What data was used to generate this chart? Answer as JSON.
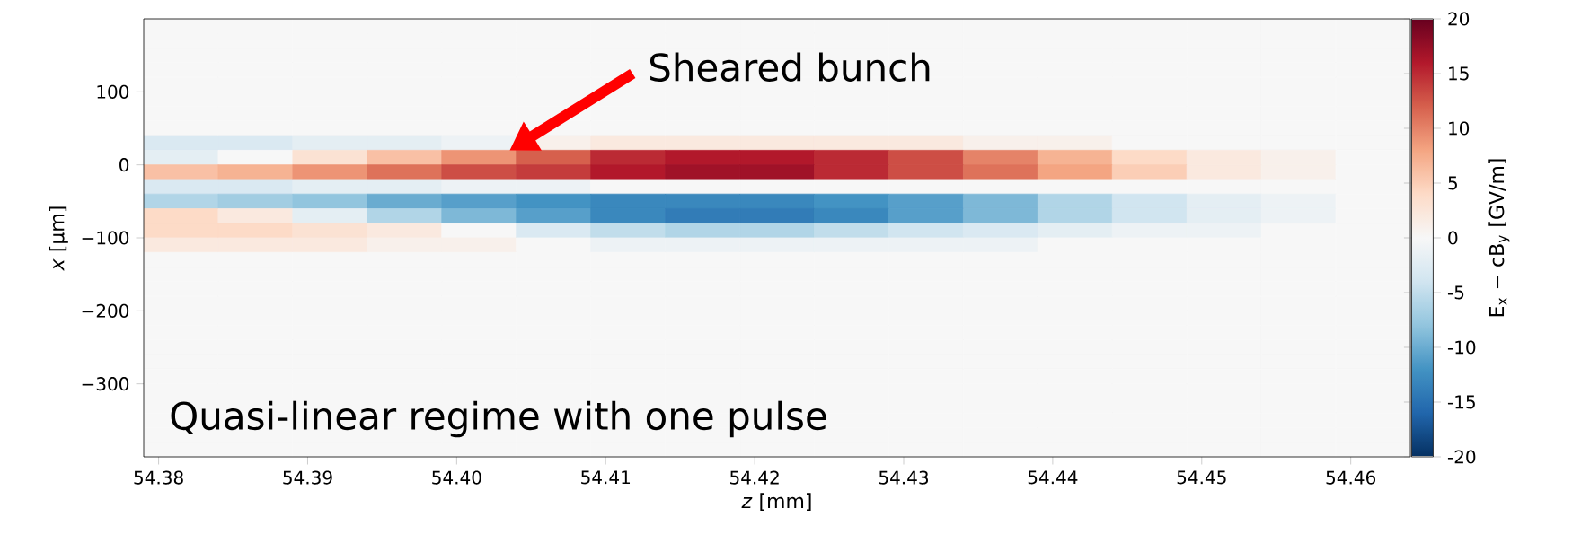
{
  "chart_data": {
    "type": "heatmap",
    "xlabel": "*z* [mm]",
    "ylabel": "*x* [µm]",
    "clabel": "E$_{x}$ − cB$_{y}$ [GV/m]",
    "xlim": [
      54.379,
      54.464
    ],
    "ylim": [
      -400,
      200
    ],
    "xticks": [
      54.38,
      54.39,
      {
        "value": 54.4,
        "label": "54.40"
      },
      54.41,
      54.42,
      54.43,
      54.44,
      54.45,
      54.46
    ],
    "yticks": [
      {
        "value": -300,
        "label": "−300"
      },
      {
        "value": -200,
        "label": "−200"
      },
      {
        "value": -100,
        "label": "−100"
      },
      0,
      100
    ],
    "clim": [
      -20,
      20
    ],
    "cticks": [
      -20,
      -15,
      -10,
      -5,
      0,
      5,
      10,
      15,
      20
    ],
    "x": [
      54.3815,
      54.3865,
      54.3915,
      54.3965,
      54.4015,
      54.4065,
      54.4115,
      54.4165,
      54.4215,
      54.4265,
      54.4315,
      54.4365,
      54.4415,
      54.4465,
      54.4515,
      54.4565,
      54.4615
    ],
    "y": [
      190,
      170,
      150,
      130,
      110,
      90,
      70,
      50,
      30,
      10,
      -10,
      -30,
      -50,
      -70,
      -90,
      -110,
      -130,
      -150,
      -170,
      -190,
      -210,
      -230,
      -250,
      -270,
      -290,
      -310,
      -330,
      -350,
      -370,
      -390
    ],
    "cells": [
      [
        0,
        0,
        0,
        0,
        0,
        0,
        0,
        0,
        0,
        0,
        0,
        0,
        0,
        0,
        0,
        0,
        0
      ],
      [
        0,
        0,
        0,
        0,
        0,
        0,
        0,
        0,
        0,
        0,
        0,
        0,
        0,
        0,
        0,
        0,
        0
      ],
      [
        0,
        0,
        0,
        0,
        0,
        0,
        0,
        0,
        0,
        0,
        0,
        0,
        0,
        0,
        0,
        0,
        0
      ],
      [
        0,
        0,
        0,
        0,
        0,
        0,
        0,
        0,
        0,
        0,
        0,
        0,
        0,
        0,
        0,
        0,
        0
      ],
      [
        0,
        0,
        0,
        0,
        0,
        0,
        0,
        0,
        0,
        0,
        0,
        0,
        0,
        0,
        0,
        0,
        0
      ],
      [
        0,
        0,
        0,
        0,
        0,
        0,
        0,
        0,
        0,
        0,
        0,
        0,
        0,
        0,
        0,
        0,
        0
      ],
      [
        0,
        0,
        0,
        0,
        0,
        0,
        0,
        0,
        0,
        0,
        0,
        0,
        0,
        0,
        0,
        0,
        0
      ],
      [
        0,
        0,
        0,
        0,
        0,
        0,
        0,
        0,
        0,
        0,
        0,
        0,
        0,
        0,
        0,
        0,
        0
      ],
      [
        -3,
        -3,
        -2,
        -2,
        -1,
        1,
        2,
        2,
        2,
        2,
        2,
        1,
        1,
        0,
        0,
        0,
        0
      ],
      [
        -2,
        0,
        3,
        6,
        9,
        12,
        15,
        16,
        16,
        15,
        13,
        10,
        7,
        4,
        2,
        1,
        0
      ],
      [
        6,
        7,
        9,
        11,
        13,
        14,
        16,
        17,
        17,
        15,
        13,
        11,
        8,
        5,
        2,
        1,
        0
      ],
      [
        -3,
        -3,
        -2,
        -2,
        -1,
        -1,
        0,
        0,
        0,
        0,
        0,
        0,
        0,
        0,
        0,
        0,
        0
      ],
      [
        -6,
        -7,
        -8,
        -10,
        -11,
        -12,
        -13,
        -13,
        -13,
        -12,
        -11,
        -9,
        -6,
        -4,
        -2,
        -1,
        0
      ],
      [
        4,
        2,
        -2,
        -6,
        -9,
        -11,
        -13,
        -14,
        -14,
        -13,
        -11,
        -9,
        -6,
        -4,
        -2,
        -1,
        0
      ],
      [
        4,
        4,
        3,
        2,
        0,
        -3,
        -5,
        -6,
        -6,
        -5,
        -4,
        -3,
        -2,
        -1,
        -1,
        0,
        0
      ],
      [
        2,
        2,
        2,
        1,
        1,
        0,
        -1,
        -1,
        -1,
        -1,
        -1,
        -1,
        0,
        0,
        0,
        0,
        0
      ],
      [
        0,
        0,
        0,
        0,
        0,
        0,
        0,
        0,
        0,
        0,
        0,
        0,
        0,
        0,
        0,
        0,
        0
      ],
      [
        0,
        0,
        0,
        0,
        0,
        0,
        0,
        0,
        0,
        0,
        0,
        0,
        0,
        0,
        0,
        0,
        0
      ],
      [
        0,
        0,
        0,
        0,
        0,
        0,
        0,
        0,
        0,
        0,
        0,
        0,
        0,
        0,
        0,
        0,
        0
      ],
      [
        0,
        0,
        0,
        0,
        0,
        0,
        0,
        0,
        0,
        0,
        0,
        0,
        0,
        0,
        0,
        0,
        0
      ],
      [
        0,
        0,
        0,
        0,
        0,
        0,
        0,
        0,
        0,
        0,
        0,
        0,
        0,
        0,
        0,
        0,
        0
      ],
      [
        0,
        0,
        0,
        0,
        0,
        0,
        0,
        0,
        0,
        0,
        0,
        0,
        0,
        0,
        0,
        0,
        0
      ],
      [
        0,
        0,
        0,
        0,
        0,
        0,
        0,
        0,
        0,
        0,
        0,
        0,
        0,
        0,
        0,
        0,
        0
      ],
      [
        0,
        0,
        0,
        0,
        0,
        0,
        0,
        0,
        0,
        0,
        0,
        0,
        0,
        0,
        0,
        0,
        0
      ],
      [
        0,
        0,
        0,
        0,
        0,
        0,
        0,
        0,
        0,
        0,
        0,
        0,
        0,
        0,
        0,
        0,
        0
      ],
      [
        0,
        0,
        0,
        0,
        0,
        0,
        0,
        0,
        0,
        0,
        0,
        0,
        0,
        0,
        0,
        0,
        0
      ],
      [
        0,
        0,
        0,
        0,
        0,
        0,
        0,
        0,
        0,
        0,
        0,
        0,
        0,
        0,
        0,
        0,
        0
      ],
      [
        0,
        0,
        0,
        0,
        0,
        0,
        0,
        0,
        0,
        0,
        0,
        0,
        0,
        0,
        0,
        0,
        0
      ],
      [
        0,
        0,
        0,
        0,
        0,
        0,
        0,
        0,
        0,
        0,
        0,
        0,
        0,
        0,
        0,
        0,
        0
      ],
      [
        0,
        0,
        0,
        0,
        0,
        0,
        0,
        0,
        0,
        0,
        0,
        0,
        0,
        0,
        0,
        0,
        0
      ]
    ],
    "annotations": [
      "Sheared bunch",
      "Quasi-linear regime with one pulse"
    ]
  }
}
